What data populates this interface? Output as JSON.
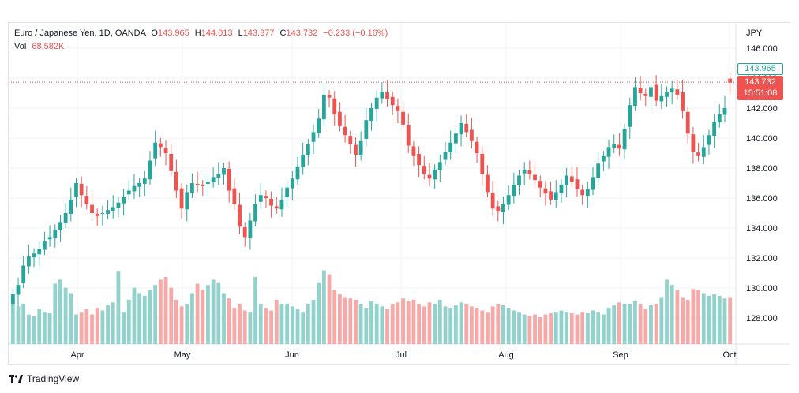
{
  "legend": {
    "symbol": "Euro / Japanese Yen, 1D, OANDA",
    "open_label": "O",
    "open": "143.965",
    "high_label": "H",
    "high": "144.013",
    "low_label": "L",
    "low": "143.377",
    "close_label": "C",
    "close": "143.732",
    "change": "−0.233 (−0.16%)",
    "vol_label": "Vol",
    "vol": "68.582K"
  },
  "axis": {
    "currency": "JPY",
    "price_ticks": [
      "146.000",
      "144.000",
      "142.000",
      "140.000",
      "138.000",
      "136.000",
      "134.000",
      "132.000",
      "130.000",
      "128.000"
    ],
    "month_labels": [
      "Apr",
      "May",
      "Jun",
      "Jul",
      "Aug",
      "Sep",
      "Oct"
    ]
  },
  "price_tags": {
    "last": "143.965",
    "current": "143.732",
    "countdown": "15:51:08"
  },
  "brand": "TradingView",
  "colors": {
    "up": "#26a69a",
    "down": "#ef5350",
    "up_vol": "#92d2cc",
    "down_vol": "#f7a9a7",
    "grid": "#f0f3fa"
  },
  "chart_data": {
    "type": "candlestick",
    "symbol": "Euro / Japanese Yen, 1D, OANDA",
    "x": "trading days (Mar–Oct)",
    "ylim": [
      126.5,
      147.2
    ],
    "volume_note": "volume bars shown in the lower part of the price pane",
    "closes": [
      129.6,
      130.2,
      131.5,
      132.1,
      132.3,
      132.6,
      133.1,
      133.4,
      133.9,
      134.4,
      135.0,
      135.9,
      137.0,
      136.2,
      135.6,
      135.0,
      134.8,
      135.0,
      135.2,
      135.4,
      135.7,
      136.1,
      136.5,
      136.8,
      137.0,
      137.3,
      138.5,
      139.7,
      139.4,
      139.0,
      137.8,
      136.5,
      135.3,
      136.4,
      137.0,
      136.9,
      136.8,
      137.1,
      137.4,
      137.6,
      138.0,
      136.5,
      135.6,
      134.1,
      133.4,
      134.5,
      135.6,
      136.2,
      136.0,
      135.5,
      135.3,
      135.9,
      136.7,
      137.3,
      138.1,
      138.9,
      139.6,
      140.4,
      141.3,
      142.9,
      142.7,
      141.6,
      140.8,
      140.2,
      139.6,
      138.9,
      139.8,
      141.2,
      142.0,
      142.7,
      143.1,
      142.6,
      142.2,
      141.8,
      140.9,
      139.5,
      138.8,
      138.2,
      137.6,
      137.3,
      137.9,
      138.4,
      139.1,
      139.7,
      140.3,
      141.0,
      140.4,
      139.8,
      139.0,
      137.6,
      136.4,
      135.3,
      135.1,
      135.6,
      136.2,
      136.9,
      137.5,
      137.9,
      137.6,
      137.2,
      136.7,
      136.3,
      135.9,
      136.4,
      136.9,
      137.5,
      137.1,
      136.6,
      136.2,
      136.6,
      137.4,
      138.3,
      138.8,
      139.4,
      139.6,
      139.3,
      140.6,
      142.2,
      143.4,
      143.0,
      142.8,
      143.4,
      142.5,
      142.8,
      143.1,
      143.3,
      142.9,
      141.8,
      140.3,
      139.1,
      138.8,
      139.4,
      140.2,
      141.1,
      141.6,
      142.0,
      143.7
    ],
    "volume_scale_note": "volume values relative (0–1)",
    "volumes": [
      0.34,
      0.28,
      0.3,
      0.22,
      0.21,
      0.26,
      0.24,
      0.23,
      0.45,
      0.48,
      0.42,
      0.38,
      0.22,
      0.24,
      0.26,
      0.22,
      0.27,
      0.25,
      0.29,
      0.31,
      0.54,
      0.24,
      0.33,
      0.42,
      0.38,
      0.36,
      0.4,
      0.44,
      0.48,
      0.5,
      0.42,
      0.33,
      0.28,
      0.3,
      0.38,
      0.45,
      0.4,
      0.44,
      0.48,
      0.46,
      0.38,
      0.34,
      0.27,
      0.3,
      0.25,
      0.24,
      0.5,
      0.3,
      0.27,
      0.25,
      0.33,
      0.3,
      0.3,
      0.28,
      0.26,
      0.24,
      0.3,
      0.33,
      0.46,
      0.55,
      0.52,
      0.4,
      0.37,
      0.35,
      0.34,
      0.33,
      0.3,
      0.27,
      0.32,
      0.3,
      0.28,
      0.26,
      0.3,
      0.31,
      0.34,
      0.32,
      0.33,
      0.3,
      0.28,
      0.31,
      0.3,
      0.33,
      0.28,
      0.27,
      0.29,
      0.31,
      0.3,
      0.28,
      0.27,
      0.25,
      0.24,
      0.28,
      0.3,
      0.29,
      0.27,
      0.25,
      0.24,
      0.22,
      0.21,
      0.22,
      0.2,
      0.22,
      0.23,
      0.24,
      0.25,
      0.24,
      0.23,
      0.22,
      0.24,
      0.23,
      0.25,
      0.24,
      0.22,
      0.27,
      0.29,
      0.31,
      0.3,
      0.3,
      0.32,
      0.3,
      0.26,
      0.29,
      0.3,
      0.35,
      0.48,
      0.44,
      0.4,
      0.35,
      0.33,
      0.41,
      0.4,
      0.38,
      0.36,
      0.37,
      0.36,
      0.34,
      0.35
    ]
  }
}
